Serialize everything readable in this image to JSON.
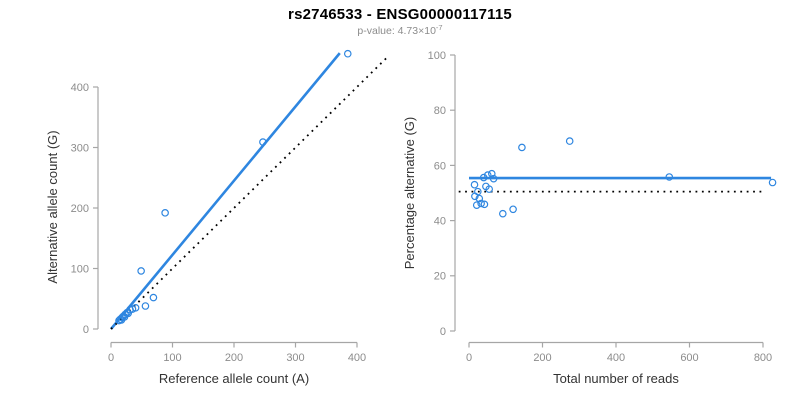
{
  "header": {
    "title": "rs2746533 - ENSG00000117115",
    "subtitle_main": "p-value: 4.73×10",
    "subtitle_exponent": "-7"
  },
  "colors": {
    "point_blue": "#2E86E0",
    "line_blue": "#2E86E0",
    "dotted_black": "#000000",
    "axis_line": "#A6A6A6",
    "tick_label": "#8C8C8C",
    "axis_title": "#333333",
    "title": "#000000",
    "subtitle": "#8C8C8C",
    "background": "#FFFFFF"
  },
  "chart_data": [
    {
      "name": "allele-count-scatter",
      "type": "scatter",
      "xlabel": "Reference allele count (A)",
      "ylabel": "Alternative allele count (G)",
      "xlim": [
        0,
        400
      ],
      "ylim": [
        0,
        460
      ],
      "xticks": [
        0,
        100,
        200,
        300,
        400
      ],
      "yticks": [
        0,
        100,
        200,
        300,
        400
      ],
      "grid": false,
      "legend": "none",
      "points": [
        [
          13,
          14
        ],
        [
          15,
          16
        ],
        [
          17,
          15
        ],
        [
          18,
          19
        ],
        [
          20,
          21
        ],
        [
          22,
          20
        ],
        [
          23,
          24
        ],
        [
          26,
          27
        ],
        [
          28,
          26
        ],
        [
          31,
          32
        ],
        [
          35,
          33
        ],
        [
          40,
          35
        ],
        [
          56,
          38
        ],
        [
          69,
          52
        ],
        [
          49,
          96
        ],
        [
          88,
          192
        ],
        [
          247,
          309
        ],
        [
          385,
          455
        ]
      ],
      "lines": [
        {
          "name": "fitted-ratio-line",
          "style": "solid",
          "from": [
            0,
            0
          ],
          "to": [
            372,
            456
          ]
        },
        {
          "name": "identity-line",
          "style": "dotted",
          "from": [
            0,
            0
          ],
          "to": [
            448,
            448
          ]
        }
      ]
    },
    {
      "name": "percentage-vs-coverage-scatter",
      "type": "scatter",
      "xlabel": "Total number of reads",
      "ylabel": "Percentage alternative (G)",
      "xlim": [
        0,
        800
      ],
      "ylim": [
        0,
        100
      ],
      "xticks": [
        0,
        200,
        400,
        600,
        800
      ],
      "yticks": [
        0,
        20,
        40,
        60,
        80,
        100
      ],
      "grid": false,
      "legend": "none",
      "points": [
        [
          15,
          53.0
        ],
        [
          24,
          50.5
        ],
        [
          16,
          48.8
        ],
        [
          21,
          45.6
        ],
        [
          28,
          48.0
        ],
        [
          33,
          46.2
        ],
        [
          40,
          55.6
        ],
        [
          42,
          45.9
        ],
        [
          46,
          52.4
        ],
        [
          51,
          56.5
        ],
        [
          55,
          51.4
        ],
        [
          62,
          57.0
        ],
        [
          67,
          55.2
        ],
        [
          92,
          42.5
        ],
        [
          120,
          44.1
        ],
        [
          144,
          66.5
        ],
        [
          274,
          68.8
        ],
        [
          545,
          55.8
        ],
        [
          826,
          53.8
        ]
      ],
      "lines": [
        {
          "name": "mean-percentage-line",
          "style": "solid",
          "from": [
            0,
            55.4
          ],
          "to": [
            822,
            55.4
          ]
        },
        {
          "name": "null-50-percent-line",
          "style": "dotted",
          "from": [
            -28,
            50.5
          ],
          "to": [
            800,
            50.5
          ]
        }
      ]
    }
  ]
}
